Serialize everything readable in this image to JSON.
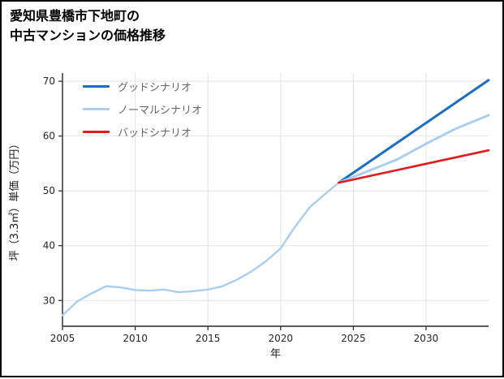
{
  "page": {
    "title_line1": "愛知県豊橋市下地町の",
    "title_line2": "中古マンションの価格推移"
  },
  "chart_data": {
    "type": "line",
    "title": "愛知県豊橋市下地町の中古マンションの価格推移",
    "xlabel": "年",
    "ylabel": "坪（3.3㎡）単価（万円）",
    "xlim": [
      2005,
      2034.3
    ],
    "ylim": [
      25.3,
      71.5
    ],
    "xticks": [
      2005,
      2010,
      2015,
      2020,
      2025,
      2030
    ],
    "yticks": [
      30,
      40,
      50,
      60,
      70
    ],
    "grid": true,
    "legend_position": "upper-left",
    "colors": {
      "good": "#1b6ec2",
      "normal": "#a8cef1",
      "bad": "#e41a1c",
      "grid": "#e4e4e4",
      "axis": "#262626"
    },
    "legend": [
      {
        "label": "グッドシナリオ",
        "series": "good"
      },
      {
        "label": "ノーマルシナリオ",
        "series": "normal"
      },
      {
        "label": "バッドシナリオ",
        "series": "bad"
      }
    ],
    "series": [
      {
        "id": "history",
        "color_key": "normal",
        "width": 2.4,
        "x": [
          2005,
          2006,
          2007,
          2008,
          2009,
          2010,
          2011,
          2012,
          2013,
          2014,
          2015,
          2016,
          2017,
          2018,
          2019,
          2020,
          2021,
          2022,
          2023,
          2024
        ],
        "y": [
          27.3,
          29.8,
          31.3,
          32.6,
          32.4,
          31.9,
          31.8,
          32.0,
          31.5,
          31.7,
          32.0,
          32.6,
          33.8,
          35.3,
          37.2,
          39.5,
          43.5,
          47.0,
          49.3,
          51.5
        ]
      },
      {
        "id": "good",
        "color_key": "good",
        "width": 3,
        "x": [
          2024,
          2034.3
        ],
        "y": [
          51.5,
          70.2
        ]
      },
      {
        "id": "normal",
        "color_key": "normal",
        "width": 3,
        "x": [
          2024,
          2026,
          2028,
          2030,
          2032,
          2034.3
        ],
        "y": [
          51.5,
          53.6,
          55.7,
          58.6,
          61.3,
          63.8
        ]
      },
      {
        "id": "bad",
        "color_key": "bad",
        "width": 2.6,
        "x": [
          2024,
          2034.3
        ],
        "y": [
          51.5,
          57.4
        ]
      }
    ]
  }
}
